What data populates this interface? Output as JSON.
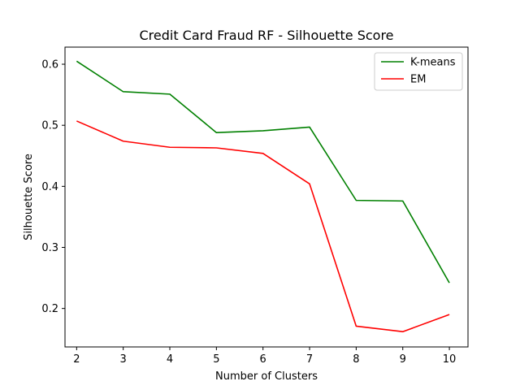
{
  "chart_data": {
    "type": "line",
    "title": "Credit Card Fraud RF - Silhouette Score",
    "xlabel": "Number of Clusters",
    "ylabel": "Silhouette Score",
    "x": [
      2,
      3,
      4,
      5,
      6,
      7,
      8,
      9,
      10
    ],
    "xlim": [
      1.75,
      10.4
    ],
    "ylim": [
      0.137,
      0.628
    ],
    "xticks": [
      "2",
      "3",
      "4",
      "5",
      "6",
      "7",
      "8",
      "9",
      "10"
    ],
    "yticks": [
      "0.2",
      "0.3",
      "0.4",
      "0.5",
      "0.6"
    ],
    "grid": false,
    "legend_position": "top-right",
    "series": [
      {
        "name": "K-means",
        "color": "#008000",
        "values": [
          0.605,
          0.555,
          0.551,
          0.488,
          0.491,
          0.497,
          0.377,
          0.376,
          0.242
        ]
      },
      {
        "name": "EM",
        "color": "#ff0000",
        "values": [
          0.507,
          0.474,
          0.464,
          0.463,
          0.454,
          0.404,
          0.171,
          0.162,
          0.19
        ]
      }
    ]
  }
}
